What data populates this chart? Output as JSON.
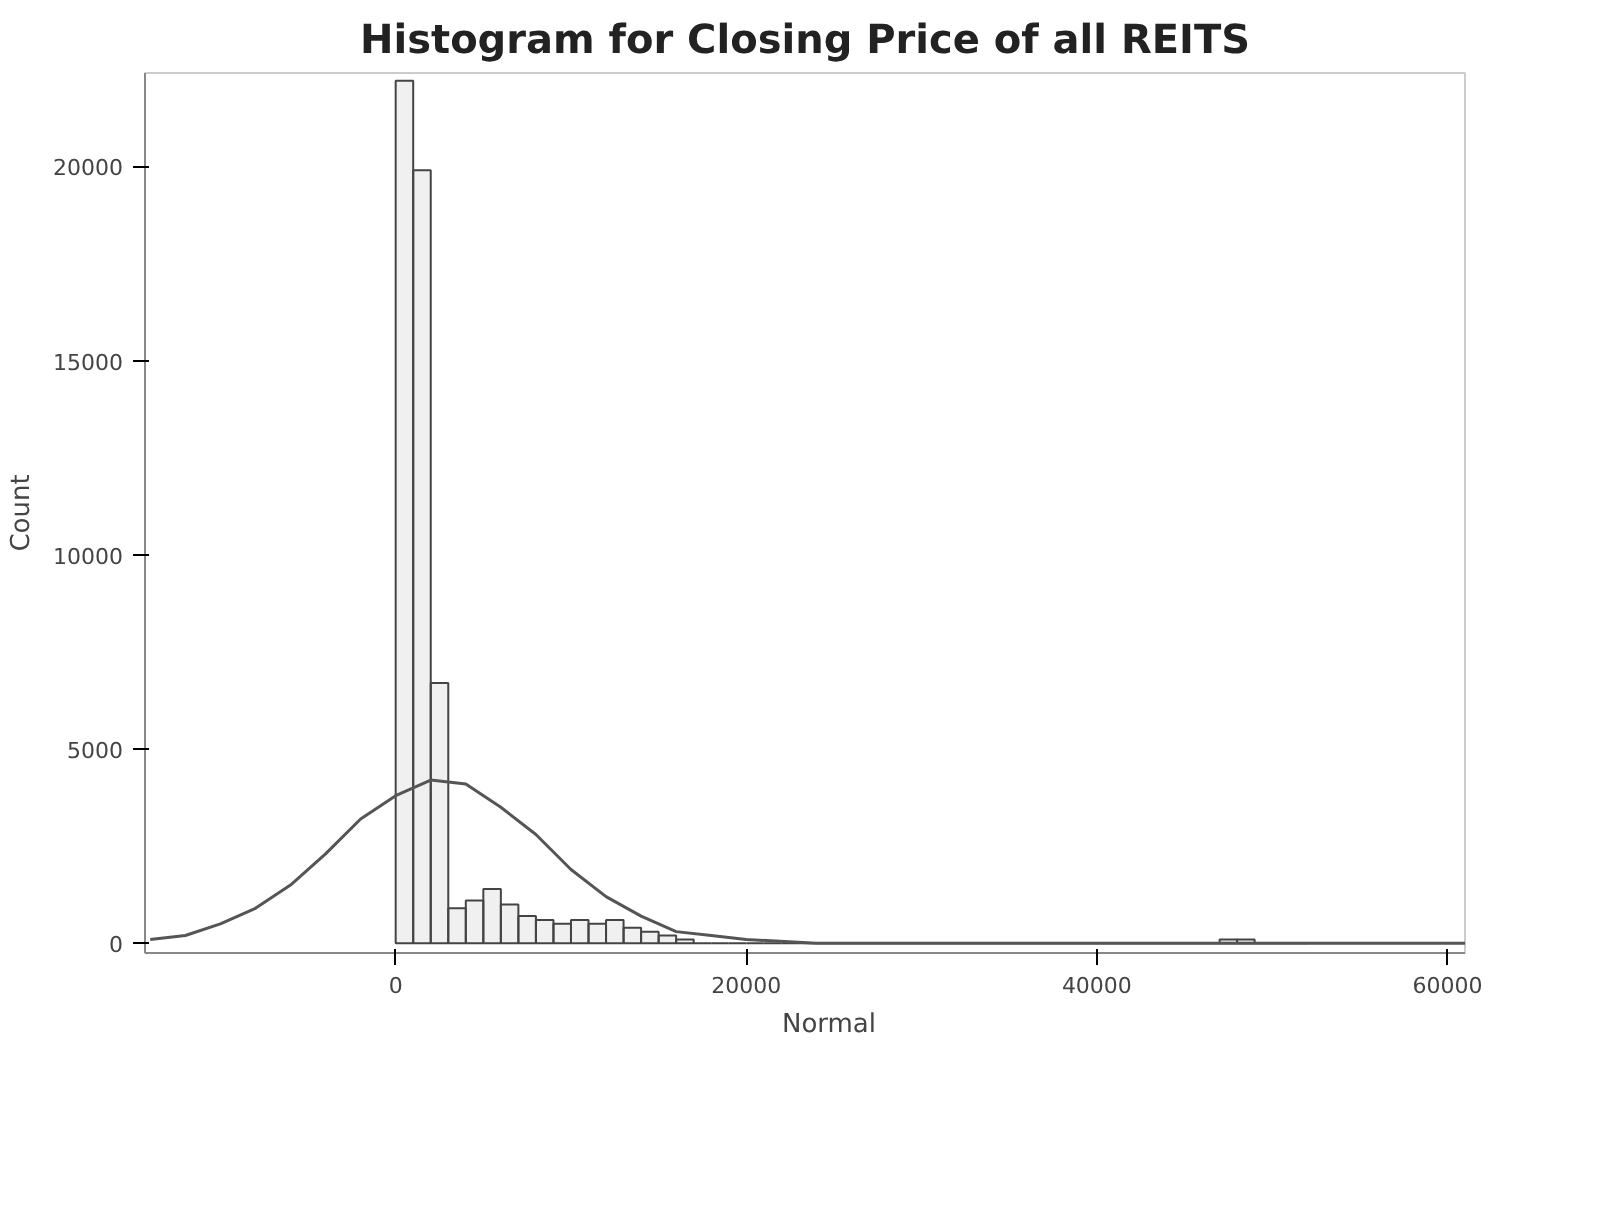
{
  "chart_data": {
    "type": "histogram",
    "title": "Histogram for Closing Price of all REITS",
    "ylabel": "Count",
    "bins": [
      0,
      1000,
      2000,
      3000,
      4000,
      5000,
      6000,
      7000,
      8000,
      9000,
      10000,
      11000,
      12000,
      13000,
      14000,
      15000,
      16000,
      17000,
      18000,
      19000,
      20000,
      21000,
      22000,
      23000,
      24000,
      25000,
      26000,
      27000,
      28000,
      29000,
      30000,
      31000,
      32000,
      33000,
      34000,
      35000,
      36000,
      37000,
      38000,
      39000,
      40000,
      41000,
      42000,
      43000,
      44000,
      45000,
      46000,
      47000,
      48000,
      49000,
      50000,
      51000,
      52000
    ],
    "values": [
      22200,
      19900,
      6700,
      900,
      1100,
      1400,
      1000,
      700,
      600,
      500,
      600,
      500,
      600,
      400,
      300,
      200,
      100,
      0,
      0,
      0,
      0,
      0,
      0,
      0,
      0,
      0,
      0,
      0,
      0,
      0,
      0,
      0,
      0,
      0,
      0,
      0,
      0,
      0,
      0,
      0,
      0,
      0,
      0,
      0,
      0,
      0,
      0,
      100,
      100,
      0,
      0,
      0
    ],
    "color": "#444444",
    "series": [
      {
        "type": "line",
        "name": "Normal",
        "color": "#555555",
        "x": [
          -14000,
          -12000,
          -10000,
          -8000,
          -6000,
          -4000,
          -2000,
          0,
          2000,
          4000,
          6000,
          8000,
          10000,
          12000,
          14000,
          16000,
          18000,
          20000,
          24000,
          61000
        ],
        "values": [
          100,
          200,
          500,
          900,
          1500,
          2300,
          3200,
          3800,
          4200,
          4100,
          3500,
          2800,
          1900,
          1200,
          700,
          300,
          200,
          100,
          0,
          0
        ]
      }
    ],
    "xlim": [
      -14300,
      61000
    ],
    "ylim": [
      -250,
      22400
    ],
    "xticks": [
      0,
      20000,
      40000,
      60000
    ],
    "yticks": [
      0,
      5000,
      10000,
      15000,
      20000
    ],
    "grid": false,
    "legend": "bottom"
  }
}
